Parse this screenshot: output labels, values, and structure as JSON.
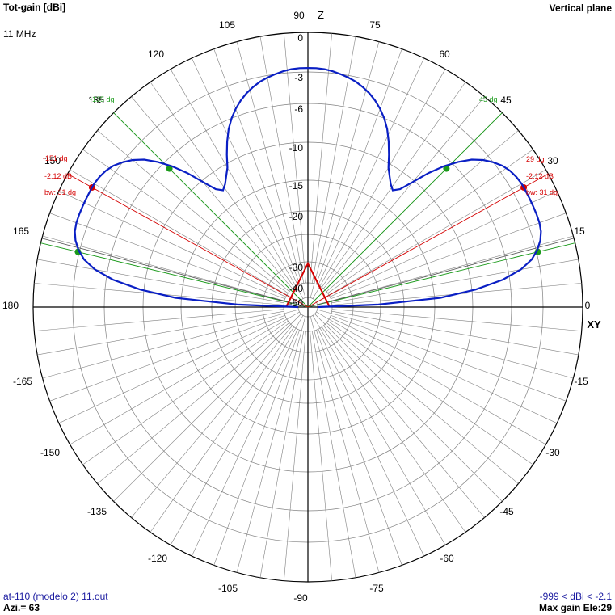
{
  "header": {
    "title": "Tot-gain [dBi]",
    "frequency": "11 MHz",
    "plane": "Vertical plane"
  },
  "footer": {
    "file": "at-110 (modelo 2) 11.out",
    "azimuth": "Azi.= 63",
    "range": "-999 < dBi < -2.1",
    "max_gain": "Max gain Ele:29"
  },
  "axes": {
    "z_label": "Z",
    "xy_label": "XY"
  },
  "colors": {
    "pattern": "#0a1fc4",
    "grid": "#808080",
    "axis": "#000000",
    "green": "#1a9a1a",
    "red": "#d40000"
  },
  "chart_data": {
    "type": "polar-radiation",
    "units": "dBi",
    "angle_tick_labels": [
      "0",
      "15",
      "30",
      "45",
      "60",
      "75",
      "90",
      "105",
      "120",
      "135",
      "150",
      "165",
      "180",
      "-165",
      "-150",
      "-135",
      "-120",
      "-105",
      "-90",
      "-75",
      "-60",
      "-45",
      "-30",
      "-15"
    ],
    "gain_ring_labels": [
      "0",
      "-3",
      "-6",
      "-10",
      "-15",
      "-20",
      "-30",
      "-40",
      "-50"
    ],
    "gain_ring_values": [
      0,
      -3,
      -6,
      -10,
      -15,
      -20,
      -30,
      -40,
      -50
    ],
    "pattern": {
      "angle_deg": [
        0,
        2,
        4,
        6,
        8,
        10,
        12,
        14,
        16,
        18,
        20,
        22,
        24,
        26,
        28,
        29,
        30,
        32,
        34,
        36,
        38,
        40,
        42,
        44,
        46,
        48,
        50,
        52,
        54,
        56,
        58,
        60,
        62,
        64,
        66,
        68,
        70,
        72,
        74,
        76,
        78,
        80,
        82,
        84,
        86,
        88,
        90
      ],
      "gain_dbi": [
        -50,
        -25,
        -14.2,
        -9.6,
        -6.7,
        -4.8,
        -3.6,
        -2.9,
        -2.5,
        -2.25,
        -2.15,
        -2.12,
        -2.12,
        -2.12,
        -2.12,
        -2.12,
        -2.12,
        -2.2,
        -2.35,
        -2.6,
        -3,
        -3.6,
        -4.4,
        -5.5,
        -6.8,
        -8.4,
        -10.2,
        -12,
        -12.7,
        -12.2,
        -11.4,
        -10.5,
        -9.2,
        -8,
        -6.9,
        -6,
        -5.3,
        -4.7,
        -4.2,
        -3.8,
        -3.45,
        -3.2,
        -3,
        -2.85,
        -2.75,
        -2.7,
        -2.7
      ]
    },
    "markers": {
      "left": {
        "peak_label": "-151 dg",
        "gain_label": "-2.12 dB",
        "bw_label": "bw: 31 dg",
        "green_label": "-135 dg"
      },
      "right": {
        "peak_label": "29 dg",
        "gain_label": "-2.12 dB",
        "bw_label": "bw: 31 dg",
        "green_label": "45 dg"
      }
    }
  }
}
